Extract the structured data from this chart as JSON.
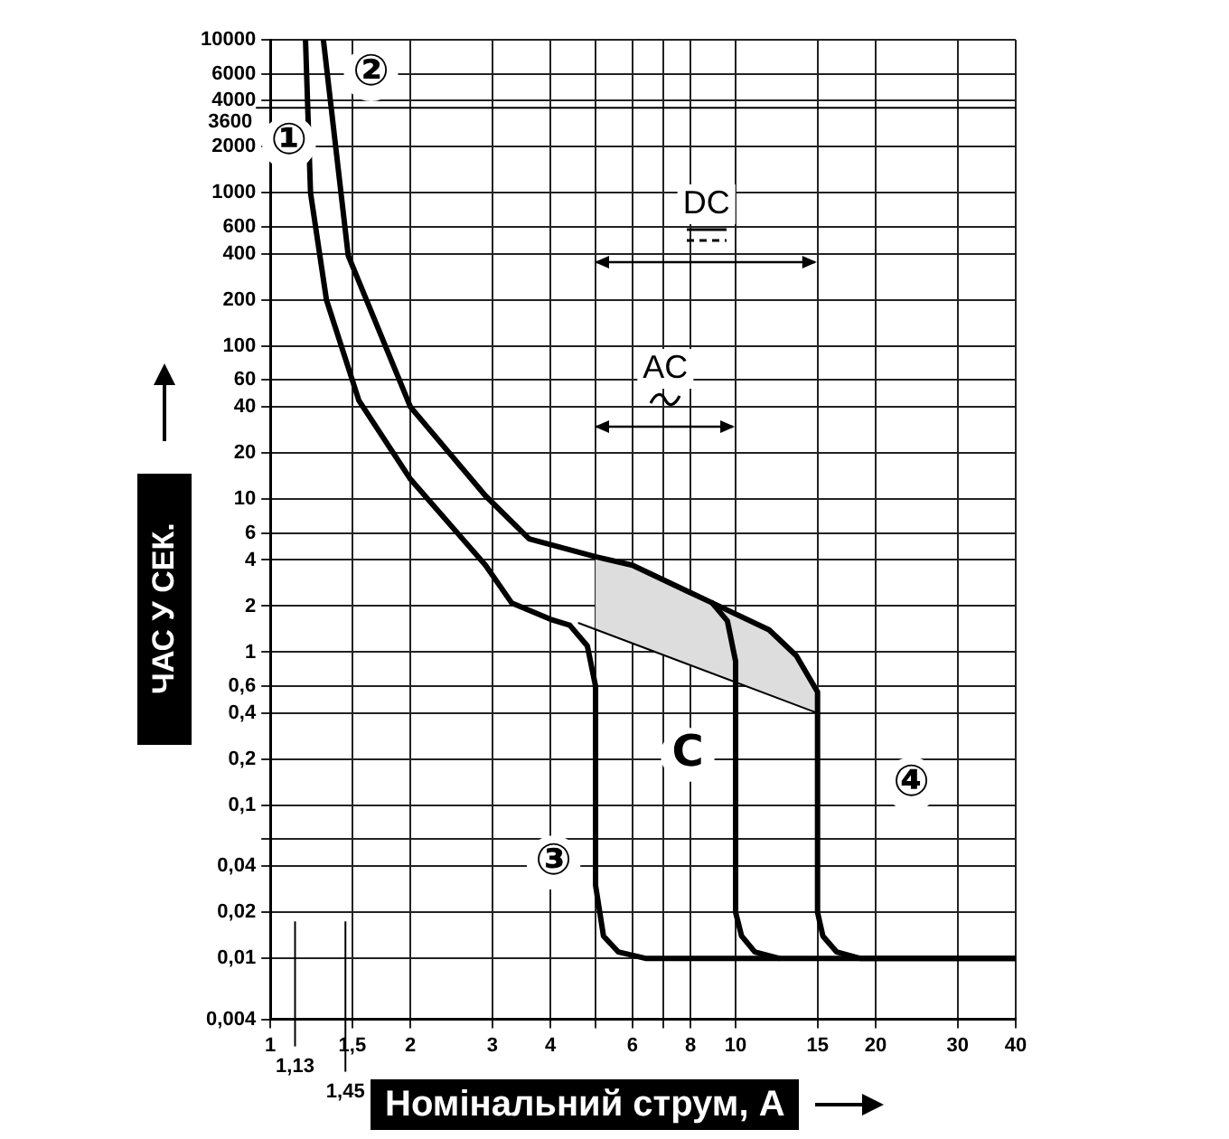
{
  "chart_data": {
    "type": "line",
    "xlabel": "Номінальний струм, А",
    "ylabel": "ЧАС У СЕК.",
    "log": "xy",
    "grid": true,
    "marker": "none",
    "line_style": "solid",
    "xlim": [
      1,
      40
    ],
    "ylim": [
      0.004,
      10000
    ],
    "xticks": [
      1,
      {
        "value": 1.5,
        "label": "1,5"
      },
      2,
      3,
      4,
      {
        "value": 5,
        "label": null
      },
      6,
      {
        "value": 7,
        "label": null
      },
      8,
      10,
      15,
      20,
      30,
      40
    ],
    "yticks": [
      {
        "value": 0.004,
        "label": "0,004"
      },
      {
        "value": 0.01,
        "label": "0,01"
      },
      {
        "value": 0.02,
        "label": "0,02"
      },
      {
        "value": 0.04,
        "label": "0,04"
      },
      {
        "value": 0.06,
        "label": null
      },
      {
        "value": 0.1,
        "label": "0,1"
      },
      {
        "value": 0.2,
        "label": "0,2"
      },
      {
        "value": 0.4,
        "label": "0,4"
      },
      {
        "value": 0.6,
        "label": "0,6"
      },
      1,
      2,
      4,
      6,
      10,
      20,
      40,
      60,
      100,
      200,
      400,
      600,
      1000,
      2000,
      4000,
      6000,
      10000
    ],
    "series": [
      {
        "type": "area",
        "color": "#dddddd",
        "x": [
          4.6,
          5,
          5,
          6,
          8.9,
          11.8,
          13.5,
          15
        ],
        "values": [
          1.55,
          1.41,
          4.2,
          3.7,
          2.1,
          1.4,
          0.95,
          0.55
        ]
      },
      {
        "type": "line",
        "color": "#000000",
        "x": [
          4.6,
          15
        ],
        "values": [
          1.55,
          0.4
        ]
      },
      {
        "type": "line",
        "color": "#000000",
        "x": [
          1.19,
          1.22,
          1.32,
          1.55,
          2,
          2.9,
          3.3,
          4,
          4.4,
          4.8,
          5,
          5,
          5.2,
          5.6,
          6.4,
          40
        ],
        "values": [
          10000,
          1000,
          200,
          44,
          13.5,
          3.7,
          2.1,
          1.64,
          1.5,
          1.1,
          0.6,
          0.03,
          0.014,
          0.011,
          0.01,
          0.01
        ]
      },
      {
        "type": "line",
        "color": "#000000",
        "x": [
          1.3,
          1.47,
          2,
          2.9,
          3.6,
          5,
          6,
          8.9,
          11.8,
          13.5,
          15,
          15,
          15.4,
          16.5,
          18.5,
          40
        ],
        "values": [
          10000,
          390,
          40,
          10.5,
          5.5,
          4.2,
          3.7,
          2.1,
          1.4,
          0.95,
          0.55,
          0.02,
          0.014,
          0.011,
          0.01,
          0.01
        ]
      },
      {
        "type": "line",
        "color": "#000000",
        "x": [
          8.9,
          9.6,
          10,
          10,
          10.3,
          11,
          12.4
        ],
        "values": [
          2.1,
          1.6,
          0.87,
          0.02,
          0.014,
          0.011,
          0.01
        ]
      }
    ],
    "ref_lines": [
      {
        "axis": "y",
        "value": 3600,
        "label": "3600"
      },
      {
        "axis": "x",
        "value": 1.13,
        "label": "1,13"
      },
      {
        "axis": "x",
        "value": 1.45,
        "label": "1,45"
      }
    ],
    "annotations": [
      "①",
      "②",
      "③",
      "④",
      "C",
      "DC",
      "AC"
    ]
  }
}
